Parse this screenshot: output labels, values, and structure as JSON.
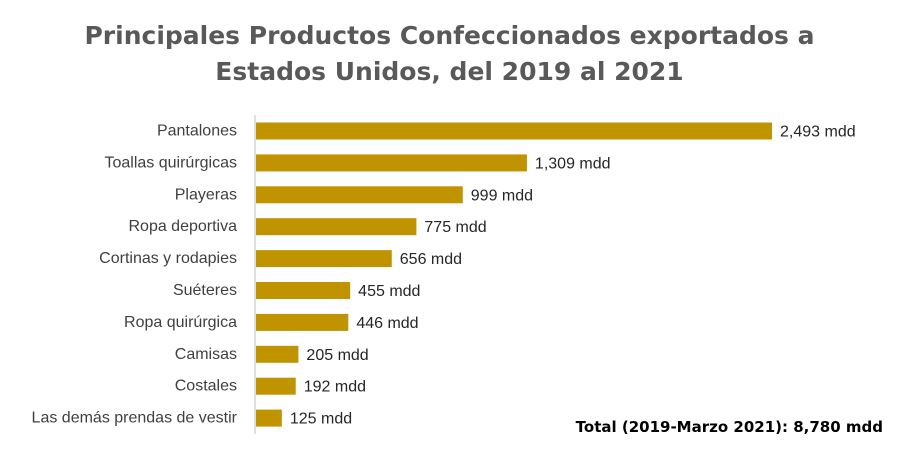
{
  "chart_data": {
    "type": "bar",
    "orientation": "horizontal",
    "title_lines": [
      "Principales Productos Confeccionados exportados a",
      "Estados Unidos, del 2019 al 2021"
    ],
    "categories": [
      "Pantalones",
      "Toallas quirúrgicas",
      "Playeras",
      "Ropa deportiva",
      "Cortinas y rodapies",
      "Suéteres",
      "Ropa quirúrgica",
      "Camisas",
      "Costales",
      "Las demás prendas de vestir"
    ],
    "values": [
      2493,
      1309,
      999,
      775,
      656,
      455,
      446,
      205,
      192,
      125
    ],
    "value_labels": [
      "2,493 mdd",
      "1,309 mdd",
      "999 mdd",
      "775 mdd",
      "656 mdd",
      "455 mdd",
      "446 mdd",
      "205 mdd",
      "192 mdd",
      "125 mdd"
    ],
    "bar_color": "#C09400",
    "axis_color": "#BFBFBF",
    "xlim": [
      0,
      2493
    ],
    "grid": false,
    "legend": "none",
    "total_note": "Total (2019-Marzo 2021): 8,780 mdd"
  }
}
